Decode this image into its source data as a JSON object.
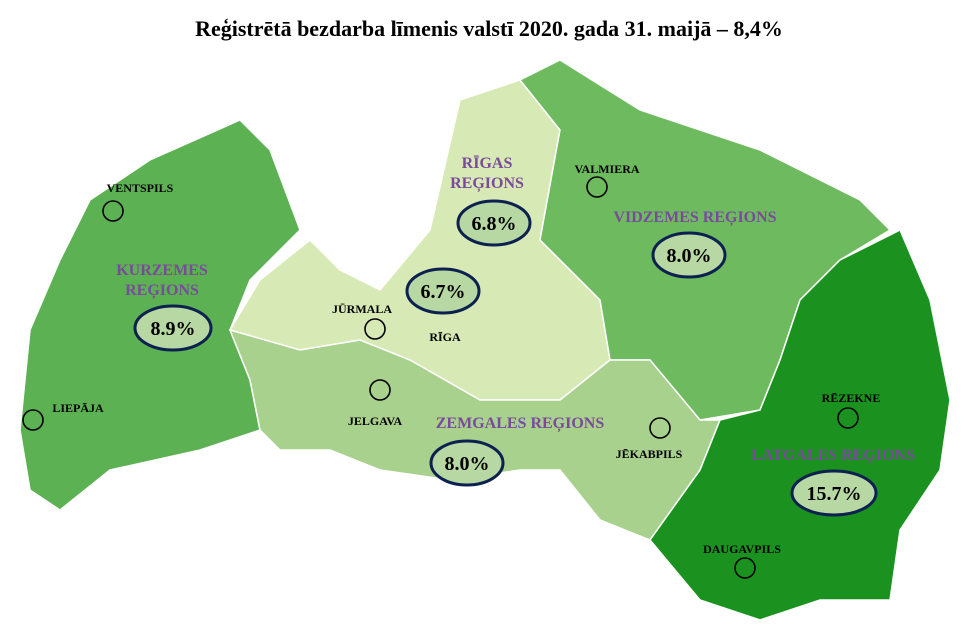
{
  "title": "Reģistrētā bezdarba līmenis valstī 2020. gada 31. maijā – 8,4%",
  "regions": [
    {
      "name": [
        "KURZEMES",
        "REĢIONS"
      ],
      "rate": "8.9%"
    },
    {
      "name": [
        "RĪGAS",
        "REĢIONS"
      ],
      "rate": "6.8%"
    },
    {
      "name": [
        "VIDZEMES REĢIONS"
      ],
      "rate": "8.0%"
    },
    {
      "name": [
        "ZEMGALES REĢIONS"
      ],
      "rate": "8.0%"
    },
    {
      "name": [
        "LATGALES REĢIONS"
      ],
      "rate": "15.7%"
    }
  ],
  "riga_city_rate": "6.7%",
  "cities": [
    "VENTSPILS",
    "LIEPĀJA",
    "JŪRMALA",
    "RĪGA",
    "JELGAVA",
    "VALMIERA",
    "JĒKABPILS",
    "RĒZEKNE",
    "DAUGAVPILS"
  ]
}
